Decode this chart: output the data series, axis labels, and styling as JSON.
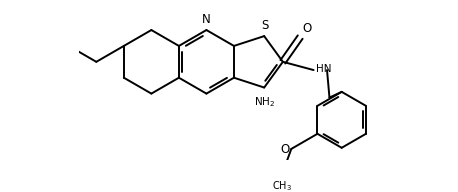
{
  "bg_color": "#ffffff",
  "line_color": "#000000",
  "line_width": 1.4,
  "figsize": [
    4.58,
    1.92
  ],
  "dpi": 100,
  "xlim": [
    -0.3,
    4.6
  ],
  "ylim": [
    -1.35,
    1.25
  ]
}
